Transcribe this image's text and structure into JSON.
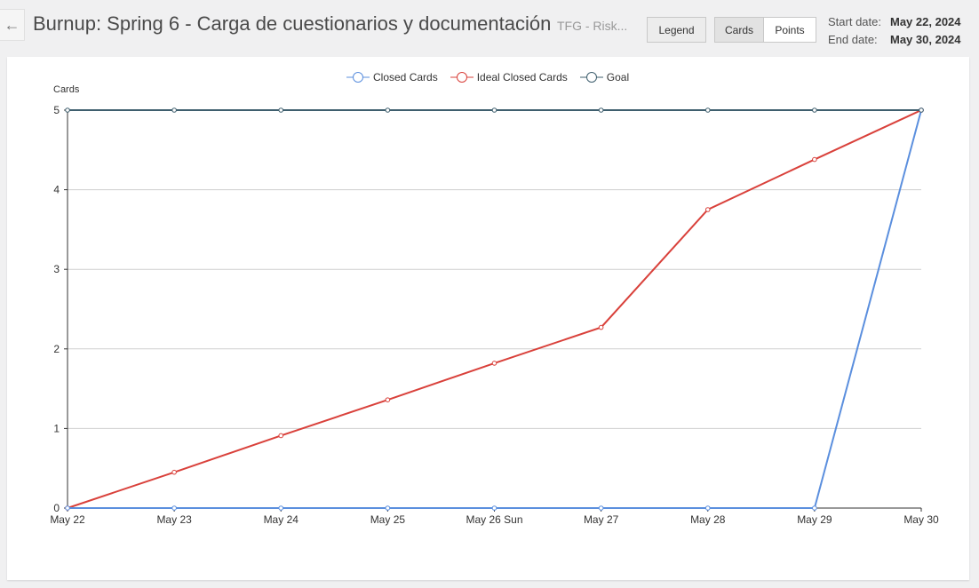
{
  "header": {
    "back_icon": "arrow-left-icon",
    "title": "Burnup: Spring 6 - Carga de cuestionarios y documentación",
    "subtitle": "TFG - Risk...",
    "legend_button": "Legend",
    "cards_button": "Cards",
    "points_button": "Points",
    "start_label": "Start date:",
    "start_value": "May 22, 2024",
    "end_label": "End date:",
    "end_value": "May 30, 2024"
  },
  "chart_data": {
    "type": "line",
    "title": "",
    "xlabel": "",
    "ylabel": "Cards",
    "ylim": [
      0,
      5
    ],
    "yticks": [
      0,
      1,
      2,
      3,
      4,
      5
    ],
    "categories": [
      "May 22",
      "May 23",
      "May 24",
      "May 25",
      "May 26 Sun",
      "May 27",
      "May 28",
      "May 29",
      "May 30"
    ],
    "legend_position": "top-center",
    "series": [
      {
        "name": "Closed Cards",
        "color": "#5b8fde",
        "values": [
          0,
          0,
          0,
          0,
          0,
          0,
          0,
          0,
          5
        ]
      },
      {
        "name": "Ideal Closed Cards",
        "color": "#d9413b",
        "values": [
          0,
          0.45,
          0.91,
          1.36,
          1.82,
          2.27,
          3.75,
          4.38,
          5
        ]
      },
      {
        "name": "Goal",
        "color": "#3f5f6e",
        "values": [
          5,
          5,
          5,
          5,
          5,
          5,
          5,
          5,
          5
        ]
      }
    ]
  }
}
